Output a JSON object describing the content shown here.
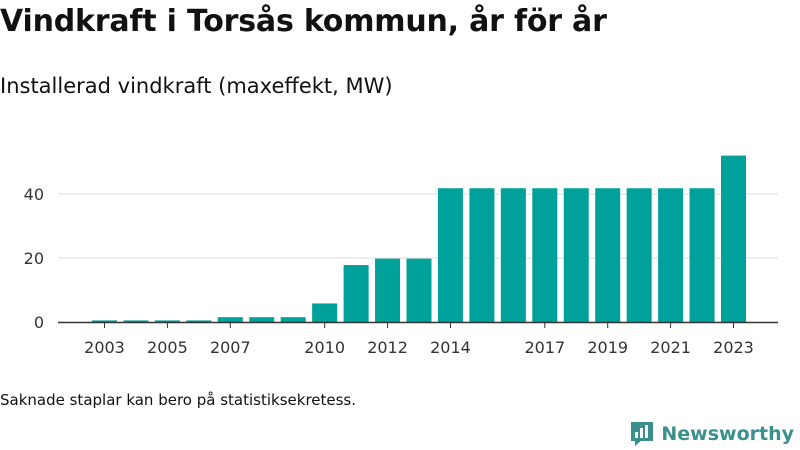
{
  "header": {
    "title": "Vindkraft i Torsås kommun, år för år",
    "subtitle": "Installerad vindkraft (maxeffekt, MW)"
  },
  "footer": {
    "note": "Saknade staplar kan bero på statistiksekretess.",
    "brand": "Newsworthy"
  },
  "colors": {
    "bar": "#00a19a",
    "grid": "#dddddd",
    "axis": "#333333",
    "brand": "#3a8f8f"
  },
  "icons": {
    "brand_logo": "newsworthy-logo-icon"
  },
  "chart_data": {
    "type": "bar",
    "title": "Vindkraft i Torsås kommun, år för år",
    "subtitle": "Installerad vindkraft (maxeffekt, MW)",
    "xlabel": "",
    "ylabel": "",
    "categories": [
      2003,
      2004,
      2005,
      2006,
      2007,
      2008,
      2009,
      2010,
      2011,
      2012,
      2013,
      2014,
      2015,
      2016,
      2017,
      2018,
      2019,
      2020,
      2021,
      2022,
      2023
    ],
    "values": [
      0.5,
      0.5,
      0.5,
      0.5,
      1.5,
      1.5,
      1.5,
      5.8,
      17.8,
      19.8,
      19.8,
      41.8,
      41.8,
      41.8,
      41.8,
      41.8,
      41.8,
      41.8,
      41.8,
      41.8,
      52.0
    ],
    "x_tick_labels": [
      "2003",
      "2005",
      "2007",
      "2010",
      "2012",
      "2014",
      "2017",
      "2019",
      "2021",
      "2023"
    ],
    "y_ticks": [
      0,
      20,
      40
    ],
    "ylim": [
      0,
      55
    ],
    "grid": true,
    "legend": "none"
  }
}
